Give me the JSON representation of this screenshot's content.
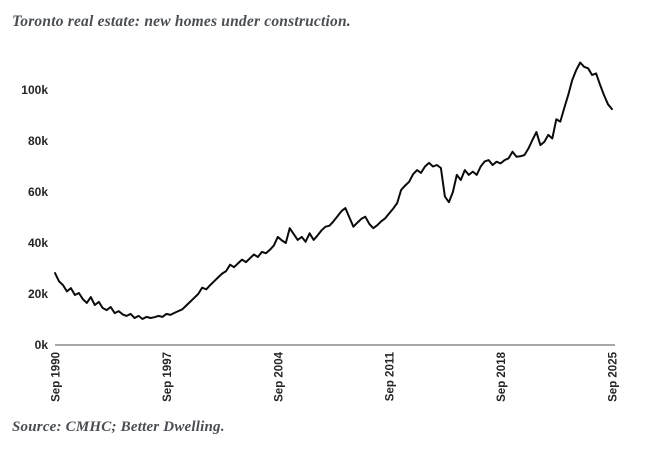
{
  "title": "Toronto real estate: new homes under construction.",
  "source": "Source: CMHC; Better Dwelling.",
  "colors": {
    "title_text": "#4a4e53",
    "tick_text": "#262626",
    "line": "#0b0b0b",
    "axis_line": "#a8a8a8",
    "background": "#ffffff"
  },
  "chart_data": {
    "type": "line",
    "title": "Toronto real estate: new homes under construction.",
    "unit": "thousands of homes under construction",
    "x_start": "Sep 1990",
    "x_end": "Sep 2025",
    "x_interval": "quarterly",
    "x_tick_labels": [
      "Sep 1990",
      "Sep 1997",
      "Sep 2004",
      "Sep 2011",
      "Sep 2018",
      "Sep 2025"
    ],
    "y_tick_labels": [
      "0k",
      "20k",
      "40k",
      "60k",
      "80k",
      "100k"
    ],
    "ylim": [
      0,
      112
    ],
    "grid": false,
    "legend": "none",
    "values_thousands": [
      28.2,
      25.0,
      23.5,
      21.0,
      22.3,
      19.6,
      20.4,
      18.0,
      16.5,
      18.8,
      15.7,
      16.9,
      14.5,
      13.7,
      14.9,
      12.5,
      13.3,
      12.0,
      11.4,
      12.2,
      10.6,
      11.4,
      10.2,
      11.0,
      10.6,
      10.9,
      11.4,
      11.0,
      12.2,
      11.8,
      12.6,
      13.3,
      14.0,
      15.5,
      17.0,
      18.5,
      20.0,
      22.5,
      21.8,
      23.5,
      25.0,
      26.5,
      28.0,
      29.0,
      31.5,
      30.5,
      32.0,
      33.5,
      32.5,
      34.0,
      35.5,
      34.5,
      36.5,
      36.0,
      37.3,
      39.0,
      42.4,
      41.0,
      40.0,
      45.8,
      43.5,
      41.2,
      42.4,
      40.5,
      43.8,
      41.2,
      43.0,
      45.0,
      46.4,
      46.8,
      48.5,
      50.5,
      52.5,
      53.7,
      50.0,
      46.4,
      48.0,
      49.5,
      50.3,
      47.5,
      45.8,
      47.0,
      48.5,
      49.7,
      51.6,
      53.5,
      55.7,
      60.8,
      62.5,
      64.0,
      67.0,
      68.6,
      67.5,
      70.0,
      71.4,
      70.0,
      70.6,
      69.4,
      58.2,
      56.0,
      60.0,
      66.7,
      64.7,
      68.6,
      66.7,
      68.0,
      66.7,
      70.0,
      72.0,
      72.5,
      70.6,
      71.9,
      71.2,
      72.5,
      73.2,
      75.8,
      73.8,
      74.0,
      74.5,
      77.1,
      80.4,
      83.5,
      78.4,
      79.7,
      82.4,
      81.0,
      88.5,
      87.6,
      93.0,
      98.0,
      103.9,
      107.8,
      110.8,
      109.1,
      108.5,
      105.9,
      106.5,
      102.0,
      98.0,
      94.4,
      92.5
    ]
  }
}
